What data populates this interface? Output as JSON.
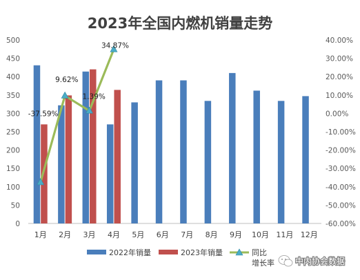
{
  "chart_data": {
    "type": "bar",
    "title": "2023年全国内燃机销量走势",
    "categories": [
      "1月",
      "2月",
      "3月",
      "4月",
      "5月",
      "6月",
      "7月",
      "8月",
      "9月",
      "10月",
      "11月",
      "12月"
    ],
    "series": [
      {
        "name": "2022年销量",
        "type": "bar",
        "axis": "left",
        "color": "#4a7ebb",
        "values": [
          431,
          322,
          414,
          270,
          330,
          390,
          390,
          334,
          410,
          362,
          334,
          347
        ]
      },
      {
        "name": "2023年销量",
        "type": "bar",
        "axis": "left",
        "color": "#c0504d",
        "values": [
          270,
          349,
          420,
          364,
          null,
          null,
          null,
          null,
          null,
          null,
          null,
          null
        ]
      },
      {
        "name": "同比增长率",
        "type": "line",
        "axis": "right",
        "color": "#9bbb59",
        "marker_color": "#4bacc6",
        "values": [
          -37.59,
          9.62,
          1.39,
          34.87,
          null,
          null,
          null,
          null,
          null,
          null,
          null,
          null
        ],
        "labels": [
          "-37.59%",
          "9.62%",
          "1.39%",
          "34.87%"
        ]
      }
    ],
    "ylim": [
      0,
      500
    ],
    "yticks": [
      0,
      50,
      100,
      150,
      200,
      250,
      300,
      350,
      400,
      450,
      500
    ],
    "y2lim": [
      -60,
      40
    ],
    "y2ticks": [
      "-60.00%",
      "-50.00%",
      "-40.00%",
      "-30.00%",
      "-20.00%",
      "-10.00%",
      "0.00%",
      "10.00%",
      "20.00%",
      "30.00%",
      "40.00%"
    ],
    "grid": false,
    "legend_position": "bottom"
  },
  "legend": {
    "item1": "2022年销量",
    "item2": "2023年销量",
    "item3_line1": "同比",
    "item3_line2": "增长率"
  },
  "watermark": {
    "text": "中内协会数据",
    "icon": "wechat-icon"
  }
}
